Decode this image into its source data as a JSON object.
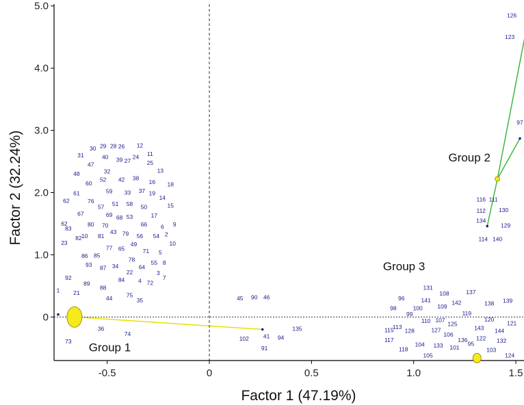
{
  "chart_data": {
    "type": "scatter",
    "title": "",
    "xlabel": "Factor 1 (47.19%)",
    "ylabel": "Factor 2 (32.24%)",
    "xlim": [
      -0.76,
      1.54
    ],
    "ylim": [
      -0.7,
      5.03
    ],
    "x_ticks": [
      -0.5,
      0,
      0.5,
      1.0,
      1.5
    ],
    "x_tick_labels": [
      "-0.5",
      "0",
      "0.5",
      "1.0",
      "1.5"
    ],
    "y_ticks": [
      0,
      1.0,
      2.0,
      3.0,
      4.0,
      5.0
    ],
    "y_tick_labels": [
      "0",
      "1.0",
      "2.0",
      "3.0",
      "4.0",
      "5.0"
    ],
    "reference_lines": {
      "x": 0,
      "y": 0
    },
    "groups": [
      {
        "name": "Group 1",
        "centroid": [
          -0.66,
          0.0
        ],
        "label_pos": [
          -0.59,
          -0.55
        ],
        "link_to": [
          0.26,
          -0.2
        ]
      },
      {
        "name": "Group 2",
        "centroid": [
          1.41,
          2.22
        ],
        "label_pos": [
          1.17,
          2.5
        ],
        "link_to": [
          [
            1.52,
            2.87
          ],
          [
            1.36,
            1.46
          ],
          [
            1.57,
            4.95
          ]
        ]
      },
      {
        "name": "Group 3",
        "centroid": [
          1.31,
          -0.66
        ],
        "label_pos": [
          0.85,
          0.75
        ]
      }
    ],
    "points": [
      {
        "label": "12",
        "x": -0.34,
        "y": 2.76
      },
      {
        "label": "11",
        "x": -0.29,
        "y": 2.62
      },
      {
        "label": "29",
        "x": -0.52,
        "y": 2.75
      },
      {
        "label": "28",
        "x": -0.47,
        "y": 2.75
      },
      {
        "label": "26",
        "x": -0.43,
        "y": 2.74
      },
      {
        "label": "30",
        "x": -0.57,
        "y": 2.71
      },
      {
        "label": "31",
        "x": -0.63,
        "y": 2.6
      },
      {
        "label": "40",
        "x": -0.51,
        "y": 2.57
      },
      {
        "label": "39",
        "x": -0.44,
        "y": 2.53
      },
      {
        "label": "27",
        "x": -0.4,
        "y": 2.51
      },
      {
        "label": "24",
        "x": -0.36,
        "y": 2.57
      },
      {
        "label": "25",
        "x": -0.29,
        "y": 2.48
      },
      {
        "label": "47",
        "x": -0.58,
        "y": 2.45
      },
      {
        "label": "13",
        "x": -0.24,
        "y": 2.35
      },
      {
        "label": "48",
        "x": -0.65,
        "y": 2.3
      },
      {
        "label": "32",
        "x": -0.5,
        "y": 2.34
      },
      {
        "label": "52",
        "x": -0.52,
        "y": 2.21
      },
      {
        "label": "42",
        "x": -0.43,
        "y": 2.21
      },
      {
        "label": "38",
        "x": -0.36,
        "y": 2.23
      },
      {
        "label": "16",
        "x": -0.28,
        "y": 2.17
      },
      {
        "label": "18",
        "x": -0.19,
        "y": 2.13
      },
      {
        "label": "60",
        "x": -0.59,
        "y": 2.15
      },
      {
        "label": "61",
        "x": -0.65,
        "y": 1.99
      },
      {
        "label": "59",
        "x": -0.49,
        "y": 2.02
      },
      {
        "label": "33",
        "x": -0.4,
        "y": 2.0
      },
      {
        "label": "37",
        "x": -0.33,
        "y": 2.03
      },
      {
        "label": "19",
        "x": -0.28,
        "y": 1.99
      },
      {
        "label": "14",
        "x": -0.23,
        "y": 1.92
      },
      {
        "label": "62",
        "x": -0.7,
        "y": 1.87
      },
      {
        "label": "76",
        "x": -0.58,
        "y": 1.86
      },
      {
        "label": "57",
        "x": -0.53,
        "y": 1.77
      },
      {
        "label": "51",
        "x": -0.46,
        "y": 1.82
      },
      {
        "label": "58",
        "x": -0.39,
        "y": 1.82
      },
      {
        "label": "50",
        "x": -0.32,
        "y": 1.77
      },
      {
        "label": "15",
        "x": -0.19,
        "y": 1.79
      },
      {
        "label": "17",
        "x": -0.27,
        "y": 1.63
      },
      {
        "label": "67",
        "x": -0.63,
        "y": 1.66
      },
      {
        "label": "69",
        "x": -0.49,
        "y": 1.64
      },
      {
        "label": "68",
        "x": -0.44,
        "y": 1.6
      },
      {
        "label": "53",
        "x": -0.39,
        "y": 1.61
      },
      {
        "label": "66",
        "x": -0.32,
        "y": 1.49
      },
      {
        "label": "6",
        "x": -0.23,
        "y": 1.45
      },
      {
        "label": "9",
        "x": -0.17,
        "y": 1.49
      },
      {
        "label": "62",
        "x": -0.71,
        "y": 1.5
      },
      {
        "label": "80",
        "x": -0.58,
        "y": 1.49
      },
      {
        "label": "70",
        "x": -0.51,
        "y": 1.47
      },
      {
        "label": "83",
        "x": -0.69,
        "y": 1.42
      },
      {
        "label": "43",
        "x": -0.47,
        "y": 1.37
      },
      {
        "label": "79",
        "x": -0.41,
        "y": 1.34
      },
      {
        "label": "56",
        "x": -0.34,
        "y": 1.3
      },
      {
        "label": "54",
        "x": -0.26,
        "y": 1.3
      },
      {
        "label": "2",
        "x": -0.21,
        "y": 1.33
      },
      {
        "label": "82",
        "x": -0.64,
        "y": 1.27
      },
      {
        "label": "10",
        "x": -0.61,
        "y": 1.3
      },
      {
        "label": "81",
        "x": -0.53,
        "y": 1.3
      },
      {
        "label": "23",
        "x": -0.71,
        "y": 1.19
      },
      {
        "label": "49",
        "x": -0.37,
        "y": 1.17
      },
      {
        "label": "10",
        "x": -0.18,
        "y": 1.18
      },
      {
        "label": "77",
        "x": -0.49,
        "y": 1.11
      },
      {
        "label": "65",
        "x": -0.43,
        "y": 1.1
      },
      {
        "label": "71",
        "x": -0.31,
        "y": 1.06
      },
      {
        "label": "5",
        "x": -0.24,
        "y": 1.04
      },
      {
        "label": "86",
        "x": -0.61,
        "y": 0.98
      },
      {
        "label": "85",
        "x": -0.55,
        "y": 0.99
      },
      {
        "label": "78",
        "x": -0.38,
        "y": 0.92
      },
      {
        "label": "55",
        "x": -0.27,
        "y": 0.87
      },
      {
        "label": "8",
        "x": -0.22,
        "y": 0.87
      },
      {
        "label": "93",
        "x": -0.59,
        "y": 0.84
      },
      {
        "label": "87",
        "x": -0.52,
        "y": 0.79
      },
      {
        "label": "34",
        "x": -0.46,
        "y": 0.82
      },
      {
        "label": "64",
        "x": -0.33,
        "y": 0.8
      },
      {
        "label": "22",
        "x": -0.39,
        "y": 0.72
      },
      {
        "label": "3",
        "x": -0.25,
        "y": 0.71
      },
      {
        "label": "7",
        "x": -0.22,
        "y": 0.63
      },
      {
        "label": "84",
        "x": -0.43,
        "y": 0.6
      },
      {
        "label": "4",
        "x": -0.34,
        "y": 0.58
      },
      {
        "label": "72",
        "x": -0.29,
        "y": 0.55
      },
      {
        "label": "92",
        "x": -0.69,
        "y": 0.63
      },
      {
        "label": "89",
        "x": -0.6,
        "y": 0.54
      },
      {
        "label": "88",
        "x": -0.52,
        "y": 0.47
      },
      {
        "label": "1",
        "x": -0.74,
        "y": 0.43
      },
      {
        "label": "21",
        "x": -0.65,
        "y": 0.39
      },
      {
        "label": "75",
        "x": -0.39,
        "y": 0.35
      },
      {
        "label": "44",
        "x": -0.49,
        "y": 0.3
      },
      {
        "label": "35",
        "x": -0.34,
        "y": 0.27
      },
      {
        "label": "36",
        "x": -0.53,
        "y": -0.19
      },
      {
        "label": "74",
        "x": -0.4,
        "y": -0.27
      },
      {
        "label": "73",
        "x": -0.69,
        "y": -0.39
      },
      {
        "label": "45",
        "x": 0.15,
        "y": 0.3
      },
      {
        "label": "90",
        "x": 0.22,
        "y": 0.32
      },
      {
        "label": "46",
        "x": 0.28,
        "y": 0.32
      },
      {
        "label": "135",
        "x": 0.43,
        "y": -0.19
      },
      {
        "label": "102",
        "x": 0.17,
        "y": -0.35
      },
      {
        "label": "41",
        "x": 0.28,
        "y": -0.31
      },
      {
        "label": "94",
        "x": 0.35,
        "y": -0.33
      },
      {
        "label": "91",
        "x": 0.27,
        "y": -0.5
      },
      {
        "label": "126",
        "x": 1.48,
        "y": 4.85
      },
      {
        "label": "123",
        "x": 1.47,
        "y": 4.5
      },
      {
        "label": "97",
        "x": 1.52,
        "y": 3.13
      },
      {
        "label": "116",
        "x": 1.33,
        "y": 1.89
      },
      {
        "label": "111",
        "x": 1.39,
        "y": 1.89
      },
      {
        "label": "112",
        "x": 1.33,
        "y": 1.71
      },
      {
        "label": "130",
        "x": 1.44,
        "y": 1.72
      },
      {
        "label": "134",
        "x": 1.33,
        "y": 1.55
      },
      {
        "label": "129",
        "x": 1.45,
        "y": 1.47
      },
      {
        "label": "114",
        "x": 1.34,
        "y": 1.25
      },
      {
        "label": "140",
        "x": 1.41,
        "y": 1.25
      },
      {
        "label": "131",
        "x": 1.07,
        "y": 0.47
      },
      {
        "label": "108",
        "x": 1.15,
        "y": 0.38
      },
      {
        "label": "137",
        "x": 1.28,
        "y": 0.4
      },
      {
        "label": "96",
        "x": 0.94,
        "y": 0.3
      },
      {
        "label": "141",
        "x": 1.06,
        "y": 0.27
      },
      {
        "label": "142",
        "x": 1.21,
        "y": 0.23
      },
      {
        "label": "139",
        "x": 1.46,
        "y": 0.26
      },
      {
        "label": "138",
        "x": 1.37,
        "y": 0.22
      },
      {
        "label": "98",
        "x": 0.9,
        "y": 0.14
      },
      {
        "label": "100",
        "x": 1.02,
        "y": 0.14
      },
      {
        "label": "109",
        "x": 1.14,
        "y": 0.17
      },
      {
        "label": "119",
        "x": 1.26,
        "y": 0.06
      },
      {
        "label": "99",
        "x": 0.98,
        "y": 0.05
      },
      {
        "label": "110",
        "x": 1.06,
        "y": -0.06
      },
      {
        "label": "107",
        "x": 1.13,
        "y": -0.05
      },
      {
        "label": "125",
        "x": 1.19,
        "y": -0.11
      },
      {
        "label": "120",
        "x": 1.37,
        "y": -0.04
      },
      {
        "label": "121",
        "x": 1.48,
        "y": -0.1
      },
      {
        "label": "113",
        "x": 0.92,
        "y": -0.16
      },
      {
        "label": "115",
        "x": 0.88,
        "y": -0.21
      },
      {
        "label": "128",
        "x": 0.98,
        "y": -0.22
      },
      {
        "label": "127",
        "x": 1.11,
        "y": -0.21
      },
      {
        "label": "143",
        "x": 1.32,
        "y": -0.18
      },
      {
        "label": "144",
        "x": 1.42,
        "y": -0.22
      },
      {
        "label": "106",
        "x": 1.17,
        "y": -0.28
      },
      {
        "label": "117",
        "x": 0.88,
        "y": -0.37
      },
      {
        "label": "136",
        "x": 1.24,
        "y": -0.37
      },
      {
        "label": "122",
        "x": 1.33,
        "y": -0.34
      },
      {
        "label": "132",
        "x": 1.43,
        "y": -0.38
      },
      {
        "label": "104",
        "x": 1.03,
        "y": -0.44
      },
      {
        "label": "133",
        "x": 1.12,
        "y": -0.46
      },
      {
        "label": "101",
        "x": 1.2,
        "y": -0.49
      },
      {
        "label": "95",
        "x": 1.28,
        "y": -0.43
      },
      {
        "label": "103",
        "x": 1.38,
        "y": -0.53
      },
      {
        "label": "118",
        "x": 0.95,
        "y": -0.52
      },
      {
        "label": "105",
        "x": 1.07,
        "y": -0.62
      },
      {
        "label": "124",
        "x": 1.47,
        "y": -0.62
      }
    ],
    "markers": [
      {
        "x": -0.74,
        "y": 0.04
      },
      {
        "x": 0.26,
        "y": -0.2
      },
      {
        "x": 1.52,
        "y": 2.87
      },
      {
        "x": 1.36,
        "y": 1.46
      }
    ],
    "colors": {
      "point_label": "#1a1a8c",
      "centroid_fill": "#f5ea1c",
      "centroid_stroke": "#8a7d00",
      "group1_line": "#e8e000",
      "group2_line": "#3db83d",
      "reference_line": "#333333"
    }
  }
}
